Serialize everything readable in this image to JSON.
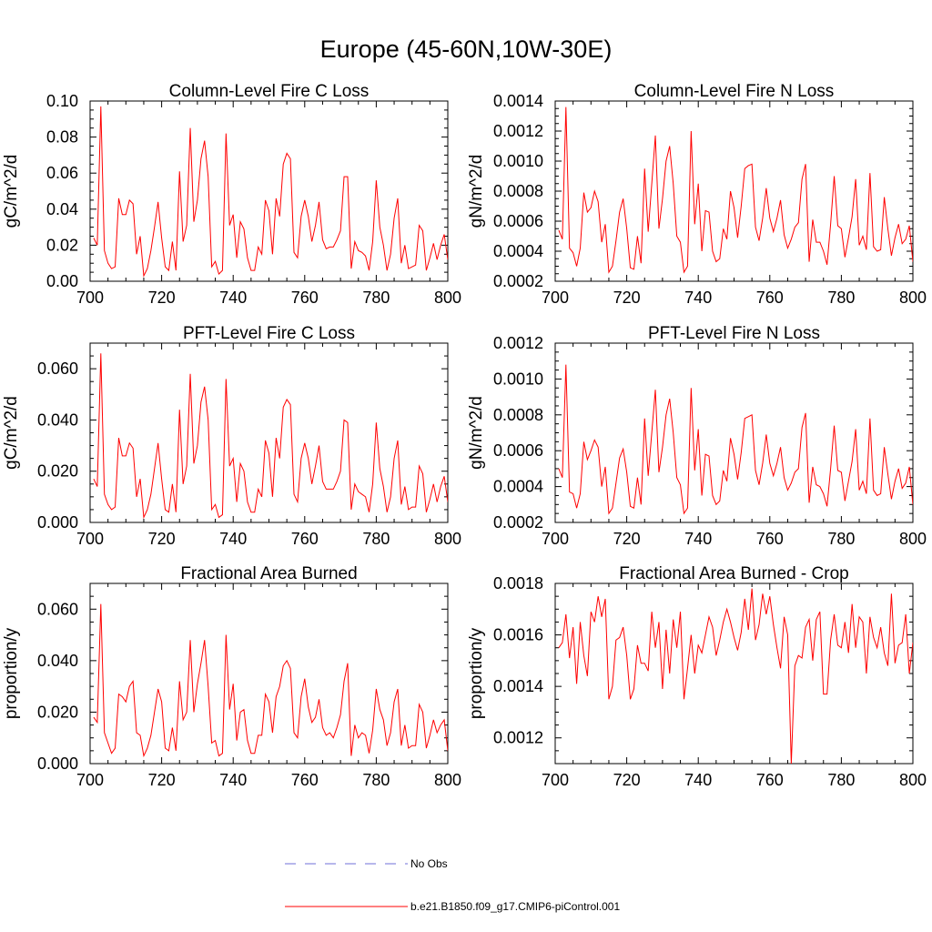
{
  "figure_title": "Europe (45-60N,10W-30E)",
  "colors": {
    "series": "#ff0000",
    "obs": "#6f6fd8",
    "axis": "#000000"
  },
  "legend": {
    "entries": [
      {
        "label": "No Obs",
        "style": "dashed",
        "color": "#6f6fd8"
      },
      {
        "label": "b.e21.B1850.f09_g17.CMIP6-piControl.001",
        "style": "solid",
        "color": "#ff0000"
      }
    ]
  },
  "chart_data": [
    {
      "type": "line",
      "title": "Column-Level Fire C Loss",
      "ylabel": "gC/m^2/d",
      "xlabel": "",
      "xlim": [
        700,
        800
      ],
      "ylim": [
        0,
        0.1
      ],
      "xticks": [
        700,
        720,
        740,
        760,
        780,
        800
      ],
      "xtick_labels": [
        "700",
        "720",
        "740",
        "760",
        "780",
        "800"
      ],
      "yticks": [
        0,
        0.02,
        0.04,
        0.06,
        0.08,
        0.1
      ],
      "ytick_labels": [
        "0.00",
        "0.02",
        "0.04",
        "0.06",
        "0.08",
        "0.10"
      ],
      "x_start": 701,
      "series": [
        {
          "name": "b.e21.B1850.f09_g17.CMIP6-piControl.001",
          "values": [
            0.024,
            0.02,
            0.097,
            0.017,
            0.01,
            0.007,
            0.008,
            0.046,
            0.037,
            0.037,
            0.045,
            0.043,
            0.015,
            0.025,
            0.003,
            0.007,
            0.017,
            0.03,
            0.044,
            0.024,
            0.008,
            0.006,
            0.022,
            0.006,
            0.061,
            0.022,
            0.031,
            0.085,
            0.033,
            0.045,
            0.068,
            0.078,
            0.058,
            0.008,
            0.011,
            0.004,
            0.006,
            0.082,
            0.031,
            0.037,
            0.013,
            0.033,
            0.029,
            0.013,
            0.006,
            0.006,
            0.019,
            0.015,
            0.045,
            0.039,
            0.015,
            0.046,
            0.036,
            0.065,
            0.071,
            0.068,
            0.016,
            0.013,
            0.036,
            0.045,
            0.036,
            0.022,
            0.031,
            0.044,
            0.023,
            0.018,
            0.019,
            0.019,
            0.023,
            0.028,
            0.058,
            0.058,
            0.007,
            0.022,
            0.017,
            0.016,
            0.014,
            0.006,
            0.022,
            0.056,
            0.03,
            0.02,
            0.006,
            0.015,
            0.035,
            0.046,
            0.01,
            0.02,
            0.007,
            0.008,
            0.009,
            0.031,
            0.028,
            0.006,
            0.013,
            0.021,
            0.012,
            0.02,
            0.026,
            0.012
          ]
        }
      ]
    },
    {
      "type": "line",
      "title": "Column-Level Fire N Loss",
      "ylabel": "gN/m^2/d",
      "xlabel": "",
      "xlim": [
        700,
        800
      ],
      "ylim": [
        0.0002,
        0.0014
      ],
      "xticks": [
        700,
        720,
        740,
        760,
        780,
        800
      ],
      "xtick_labels": [
        "700",
        "720",
        "740",
        "760",
        "780",
        "800"
      ],
      "yticks": [
        0.0002,
        0.0004,
        0.0006,
        0.0008,
        0.001,
        0.0012,
        0.0014
      ],
      "ytick_labels": [
        "0.0002",
        "0.0004",
        "0.0006",
        "0.0008",
        "0.0010",
        "0.0012",
        "0.0014"
      ],
      "x_start": 701,
      "series": [
        {
          "name": "b.e21.B1850.f09_g17.CMIP6-piControl.001",
          "values": [
            0.00054,
            0.00048,
            0.00136,
            0.00042,
            0.00039,
            0.0003,
            0.00042,
            0.00079,
            0.00066,
            0.00069,
            0.0008,
            0.00073,
            0.00046,
            0.00058,
            0.00026,
            0.0003,
            0.00047,
            0.00066,
            0.00075,
            0.00055,
            0.00029,
            0.00028,
            0.0005,
            0.00032,
            0.00095,
            0.00053,
            0.00085,
            0.00117,
            0.00055,
            0.00075,
            0.001,
            0.0011,
            0.00085,
            0.0005,
            0.00046,
            0.00026,
            0.0003,
            0.0012,
            0.00058,
            0.00085,
            0.0004,
            0.00067,
            0.00066,
            0.0004,
            0.00033,
            0.00035,
            0.00055,
            0.00048,
            0.0008,
            0.00069,
            0.00049,
            0.0007,
            0.00095,
            0.00097,
            0.00098,
            0.00056,
            0.00047,
            0.00062,
            0.00082,
            0.00062,
            0.00053,
            0.00062,
            0.00074,
            0.00051,
            0.00042,
            0.00048,
            0.00056,
            0.00059,
            0.00088,
            0.00098,
            0.00033,
            0.00061,
            0.00046,
            0.00046,
            0.0004,
            0.00031,
            0.00058,
            0.0009,
            0.00057,
            0.00055,
            0.00036,
            0.00049,
            0.00063,
            0.00088,
            0.00044,
            0.0005,
            0.00041,
            0.00092,
            0.00043,
            0.0004,
            0.00041,
            0.00076,
            0.00055,
            0.00037,
            0.00049,
            0.00058,
            0.00045,
            0.00048,
            0.00057,
            0.00033
          ]
        }
      ]
    },
    {
      "type": "line",
      "title": "PFT-Level Fire C Loss",
      "ylabel": "gC/m^2/d",
      "xlabel": "",
      "xlim": [
        700,
        800
      ],
      "ylim": [
        0,
        0.07
      ],
      "xticks": [
        700,
        720,
        740,
        760,
        780,
        800
      ],
      "xtick_labels": [
        "700",
        "720",
        "740",
        "760",
        "780",
        "800"
      ],
      "yticks": [
        0,
        0.02,
        0.04,
        0.06
      ],
      "ytick_labels": [
        "0.000",
        "0.020",
        "0.040",
        "0.060"
      ],
      "x_start": 701,
      "series": [
        {
          "name": "b.e21.B1850.f09_g17.CMIP6-piControl.001",
          "values": [
            0.017,
            0.014,
            0.066,
            0.011,
            0.007,
            0.005,
            0.006,
            0.033,
            0.026,
            0.026,
            0.031,
            0.029,
            0.01,
            0.017,
            0.002,
            0.005,
            0.011,
            0.021,
            0.031,
            0.017,
            0.005,
            0.004,
            0.015,
            0.004,
            0.044,
            0.015,
            0.022,
            0.058,
            0.023,
            0.03,
            0.047,
            0.053,
            0.04,
            0.005,
            0.007,
            0.002,
            0.003,
            0.056,
            0.022,
            0.025,
            0.008,
            0.023,
            0.02,
            0.008,
            0.004,
            0.004,
            0.013,
            0.01,
            0.032,
            0.027,
            0.01,
            0.033,
            0.025,
            0.045,
            0.048,
            0.046,
            0.011,
            0.008,
            0.025,
            0.031,
            0.025,
            0.015,
            0.022,
            0.03,
            0.016,
            0.013,
            0.013,
            0.013,
            0.016,
            0.02,
            0.04,
            0.039,
            0.005,
            0.015,
            0.012,
            0.011,
            0.01,
            0.004,
            0.015,
            0.039,
            0.021,
            0.014,
            0.004,
            0.01,
            0.025,
            0.032,
            0.007,
            0.014,
            0.005,
            0.006,
            0.006,
            0.022,
            0.019,
            0.004,
            0.009,
            0.015,
            0.008,
            0.014,
            0.018,
            0.008
          ]
        }
      ]
    },
    {
      "type": "line",
      "title": "PFT-Level Fire N Loss",
      "ylabel": "gN/m^2/d",
      "xlabel": "",
      "xlim": [
        700,
        800
      ],
      "ylim": [
        0.0002,
        0.0012
      ],
      "xticks": [
        700,
        720,
        740,
        760,
        780,
        800
      ],
      "xtick_labels": [
        "700",
        "720",
        "740",
        "760",
        "780",
        "800"
      ],
      "yticks": [
        0.0002,
        0.0004,
        0.0006,
        0.0008,
        0.001,
        0.0012
      ],
      "ytick_labels": [
        "0.0002",
        "0.0004",
        "0.0006",
        "0.0008",
        "0.0010",
        "0.0012"
      ],
      "x_start": 701,
      "series": [
        {
          "name": "b.e21.B1850.f09_g17.CMIP6-piControl.001",
          "values": [
            0.0005,
            0.00045,
            0.00108,
            0.00037,
            0.00036,
            0.00028,
            0.00036,
            0.00065,
            0.00055,
            0.0006,
            0.00066,
            0.00062,
            0.0004,
            0.00051,
            0.00025,
            0.00028,
            0.00042,
            0.00056,
            0.00061,
            0.00048,
            0.00029,
            0.00028,
            0.00045,
            0.0003,
            0.00078,
            0.00046,
            0.0007,
            0.00094,
            0.00048,
            0.00062,
            0.0008,
            0.00089,
            0.0007,
            0.00045,
            0.00041,
            0.00025,
            0.00028,
            0.00095,
            0.00049,
            0.00072,
            0.00035,
            0.00058,
            0.00057,
            0.00035,
            0.0003,
            0.00032,
            0.00049,
            0.00043,
            0.00067,
            0.00058,
            0.00044,
            0.00059,
            0.00078,
            0.00079,
            0.0008,
            0.00049,
            0.00041,
            0.00053,
            0.00069,
            0.00053,
            0.00046,
            0.00053,
            0.00062,
            0.00045,
            0.00038,
            0.00042,
            0.00048,
            0.0005,
            0.00073,
            0.00081,
            0.00031,
            0.00051,
            0.00041,
            0.0004,
            0.00036,
            0.00029,
            0.0005,
            0.00074,
            0.00049,
            0.00048,
            0.00032,
            0.00043,
            0.00054,
            0.00072,
            0.00038,
            0.00043,
            0.00036,
            0.00078,
            0.00038,
            0.00035,
            0.00036,
            0.00062,
            0.00047,
            0.00033,
            0.00043,
            0.0005,
            0.00039,
            0.00042,
            0.00051,
            0.0003
          ]
        }
      ]
    },
    {
      "type": "line",
      "title": "Fractional Area Burned",
      "ylabel": "proportion/y",
      "xlabel": "",
      "xlim": [
        700,
        800
      ],
      "ylim": [
        0,
        0.07
      ],
      "xticks": [
        700,
        720,
        740,
        760,
        780,
        800
      ],
      "xtick_labels": [
        "700",
        "720",
        "740",
        "760",
        "780",
        "800"
      ],
      "yticks": [
        0,
        0.02,
        0.04,
        0.06
      ],
      "ytick_labels": [
        "0.000",
        "0.020",
        "0.040",
        "0.060"
      ],
      "x_start": 701,
      "series": [
        {
          "name": "b.e21.B1850.f09_g17.CMIP6-piControl.001",
          "values": [
            0.018,
            0.016,
            0.062,
            0.012,
            0.008,
            0.004,
            0.006,
            0.027,
            0.026,
            0.024,
            0.03,
            0.032,
            0.012,
            0.011,
            0.003,
            0.006,
            0.011,
            0.02,
            0.029,
            0.024,
            0.006,
            0.005,
            0.014,
            0.005,
            0.032,
            0.017,
            0.02,
            0.048,
            0.02,
            0.031,
            0.039,
            0.048,
            0.03,
            0.008,
            0.009,
            0.003,
            0.004,
            0.05,
            0.021,
            0.031,
            0.009,
            0.02,
            0.021,
            0.009,
            0.004,
            0.004,
            0.011,
            0.011,
            0.027,
            0.024,
            0.012,
            0.026,
            0.03,
            0.038,
            0.04,
            0.037,
            0.012,
            0.01,
            0.026,
            0.033,
            0.022,
            0.016,
            0.018,
            0.025,
            0.014,
            0.011,
            0.012,
            0.01,
            0.014,
            0.019,
            0.032,
            0.039,
            0.003,
            0.015,
            0.01,
            0.012,
            0.011,
            0.004,
            0.013,
            0.029,
            0.021,
            0.017,
            0.007,
            0.012,
            0.024,
            0.029,
            0.007,
            0.015,
            0.006,
            0.007,
            0.007,
            0.023,
            0.02,
            0.006,
            0.011,
            0.017,
            0.012,
            0.015,
            0.017,
            0.005
          ]
        }
      ]
    },
    {
      "type": "line",
      "title": "Fractional Area Burned - Crop",
      "ylabel": "proportion/y",
      "xlabel": "",
      "xlim": [
        700,
        800
      ],
      "ylim": [
        0.0011,
        0.0018
      ],
      "xticks": [
        700,
        720,
        740,
        760,
        780,
        800
      ],
      "xtick_labels": [
        "700",
        "720",
        "740",
        "760",
        "780",
        "800"
      ],
      "yticks": [
        0.0012,
        0.0014,
        0.0016,
        0.0018
      ],
      "ytick_labels": [
        "0.0012",
        "0.0014",
        "0.0016",
        "0.0018"
      ],
      "x_start": 701,
      "series": [
        {
          "name": "b.e21.B1850.f09_g17.CMIP6-piControl.001",
          "values": [
            0.00155,
            0.00157,
            0.00168,
            0.00151,
            0.00163,
            0.00141,
            0.00165,
            0.00152,
            0.00144,
            0.00169,
            0.00165,
            0.00175,
            0.00167,
            0.00174,
            0.00135,
            0.0014,
            0.00158,
            0.00159,
            0.00163,
            0.00152,
            0.00135,
            0.00139,
            0.00156,
            0.00149,
            0.00149,
            0.00146,
            0.00169,
            0.00155,
            0.00165,
            0.00139,
            0.00162,
            0.00145,
            0.00166,
            0.00155,
            0.00169,
            0.00135,
            0.00147,
            0.0016,
            0.00145,
            0.00156,
            0.00153,
            0.0016,
            0.00167,
            0.00163,
            0.00152,
            0.00158,
            0.00165,
            0.0017,
            0.00165,
            0.00159,
            0.00154,
            0.00161,
            0.00174,
            0.00162,
            0.00178,
            0.00158,
            0.00164,
            0.00176,
            0.00168,
            0.00175,
            0.00164,
            0.00155,
            0.00147,
            0.00167,
            0.0016,
            0.0011,
            0.00148,
            0.00152,
            0.00151,
            0.00163,
            0.00166,
            0.0015,
            0.00166,
            0.00169,
            0.00137,
            0.00137,
            0.00158,
            0.00168,
            0.00156,
            0.00155,
            0.00165,
            0.00153,
            0.00172,
            0.00155,
            0.00167,
            0.00165,
            0.00145,
            0.00167,
            0.00159,
            0.00155,
            0.00163,
            0.00153,
            0.00148,
            0.00176,
            0.00149,
            0.00156,
            0.00157,
            0.00168,
            0.00145,
            0.00157
          ]
        }
      ]
    }
  ]
}
